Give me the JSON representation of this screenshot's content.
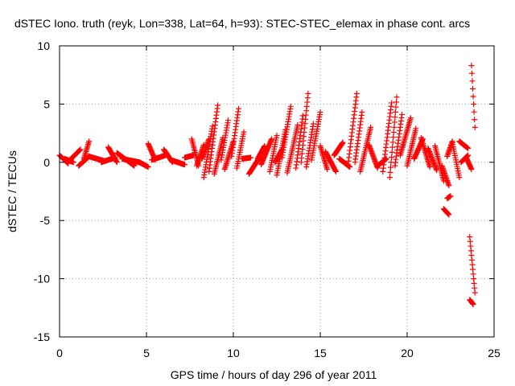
{
  "chart_data": {
    "type": "scatter",
    "title": "dSTEC Iono. truth (reyk, Lon=338, Lat=64, h=93): STEC-STEC_elemax in phase cont. arcs",
    "xlabel": "GPS time / hours of day 296 of year 2011",
    "ylabel": "dSTEC  / TECUs",
    "xlim": [
      0,
      25
    ],
    "ylim": [
      -15,
      10
    ],
    "xticks": [
      0,
      5,
      10,
      15,
      20,
      25
    ],
    "yticks": [
      -15,
      -10,
      -5,
      0,
      5,
      10
    ],
    "grid": true,
    "marker": "+",
    "color": "#ff0000",
    "arcs": [
      {
        "x0": 0.0,
        "x1": 0.5,
        "y0": 0.6,
        "y1": -0.1
      },
      {
        "x0": 0.3,
        "x1": 0.8,
        "y0": 0.3,
        "y1": 0.0
      },
      {
        "x0": 0.6,
        "x1": 1.2,
        "y0": 0.2,
        "y1": 1.1
      },
      {
        "x0": 1.1,
        "x1": 1.7,
        "y0": -0.3,
        "y1": 0.5
      },
      {
        "x0": 1.4,
        "x1": 1.7,
        "y0": 0.3,
        "y1": 1.8
      },
      {
        "x0": 1.7,
        "x1": 2.6,
        "y0": 0.5,
        "y1": 0.1
      },
      {
        "x0": 2.4,
        "x1": 3.2,
        "y0": 0.0,
        "y1": 0.4
      },
      {
        "x0": 2.8,
        "x1": 3.3,
        "y0": 1.3,
        "y1": 0.0
      },
      {
        "x0": 3.3,
        "x1": 4.3,
        "y0": 0.8,
        "y1": -0.3
      },
      {
        "x0": 3.6,
        "x1": 4.6,
        "y0": 0.3,
        "y1": 0.0
      },
      {
        "x0": 4.6,
        "x1": 5.1,
        "y0": 0.0,
        "y1": -0.4
      },
      {
        "x0": 5.1,
        "x1": 5.5,
        "y0": 1.6,
        "y1": 0.2
      },
      {
        "x0": 5.3,
        "x1": 6.1,
        "y0": 0.2,
        "y1": 0.6
      },
      {
        "x0": 6.0,
        "x1": 6.5,
        "y0": 1.1,
        "y1": 0.0
      },
      {
        "x0": 6.4,
        "x1": 7.2,
        "y0": 0.2,
        "y1": -0.2
      },
      {
        "x0": 7.2,
        "x1": 7.7,
        "y0": 0.4,
        "y1": 0.6
      },
      {
        "x0": 7.6,
        "x1": 8.0,
        "y0": 2.0,
        "y1": -0.3
      },
      {
        "x0": 7.9,
        "x1": 8.3,
        "y0": -0.3,
        "y1": 1.5
      },
      {
        "x0": 8.2,
        "x1": 8.6,
        "y0": 0.3,
        "y1": 2.0
      },
      {
        "x0": 8.3,
        "x1": 8.8,
        "y0": -1.3,
        "y1": 3.1
      },
      {
        "x0": 8.6,
        "x1": 9.1,
        "y0": -0.8,
        "y1": 4.9
      },
      {
        "x0": 8.9,
        "x1": 9.4,
        "y0": -1.0,
        "y1": 2.1
      },
      {
        "x0": 9.3,
        "x1": 9.7,
        "y0": 0.2,
        "y1": 3.6
      },
      {
        "x0": 9.5,
        "x1": 10.0,
        "y0": -0.6,
        "y1": 1.8
      },
      {
        "x0": 9.9,
        "x1": 10.3,
        "y0": 0.5,
        "y1": 4.6
      },
      {
        "x0": 10.2,
        "x1": 10.6,
        "y0": -0.5,
        "y1": 2.6
      },
      {
        "x0": 10.5,
        "x1": 11.0,
        "y0": 0.3,
        "y1": 0.4
      },
      {
        "x0": 10.9,
        "x1": 11.5,
        "y0": -1.0,
        "y1": 0.4
      },
      {
        "x0": 11.4,
        "x1": 11.8,
        "y0": 0.3,
        "y1": 1.4
      },
      {
        "x0": 11.6,
        "x1": 12.2,
        "y0": -0.2,
        "y1": 2.0
      },
      {
        "x0": 12.1,
        "x1": 12.5,
        "y0": -0.8,
        "y1": 2.3
      },
      {
        "x0": 12.4,
        "x1": 12.8,
        "y0": 0.0,
        "y1": 1.1
      },
      {
        "x0": 12.5,
        "x1": 13.0,
        "y0": -1.1,
        "y1": 2.8
      },
      {
        "x0": 12.8,
        "x1": 13.3,
        "y0": 0.4,
        "y1": 4.8
      },
      {
        "x0": 13.1,
        "x1": 13.7,
        "y0": -0.9,
        "y1": 3.2
      },
      {
        "x0": 13.6,
        "x1": 14.0,
        "y0": -0.5,
        "y1": 4.0
      },
      {
        "x0": 13.9,
        "x1": 14.3,
        "y0": 0.0,
        "y1": 5.9
      },
      {
        "x0": 14.2,
        "x1": 14.6,
        "y0": -0.4,
        "y1": 3.3
      },
      {
        "x0": 14.5,
        "x1": 15.0,
        "y0": 0.2,
        "y1": 4.3
      },
      {
        "x0": 15.0,
        "x1": 15.4,
        "y0": 1.4,
        "y1": -0.6
      },
      {
        "x0": 15.3,
        "x1": 15.9,
        "y0": 0.9,
        "y1": -0.8
      },
      {
        "x0": 15.8,
        "x1": 16.3,
        "y0": 0.6,
        "y1": 1.7
      },
      {
        "x0": 16.1,
        "x1": 16.7,
        "y0": 0.3,
        "y1": -0.4
      },
      {
        "x0": 16.6,
        "x1": 17.1,
        "y0": -0.2,
        "y1": 5.9
      },
      {
        "x0": 17.0,
        "x1": 17.4,
        "y0": 0.0,
        "y1": 4.3
      },
      {
        "x0": 17.3,
        "x1": 17.9,
        "y0": -0.8,
        "y1": 3.0
      },
      {
        "x0": 17.8,
        "x1": 18.3,
        "y0": 1.5,
        "y1": -0.5
      },
      {
        "x0": 18.3,
        "x1": 18.8,
        "y0": -0.3,
        "y1": 0.3
      },
      {
        "x0": 18.6,
        "x1": 19.1,
        "y0": -0.8,
        "y1": 5.1
      },
      {
        "x0": 19.0,
        "x1": 19.4,
        "y0": -1.3,
        "y1": 5.6
      },
      {
        "x0": 19.3,
        "x1": 19.7,
        "y0": -0.3,
        "y1": 4.1
      },
      {
        "x0": 19.6,
        "x1": 20.2,
        "y0": 0.6,
        "y1": 3.8
      },
      {
        "x0": 20.0,
        "x1": 20.5,
        "y0": -0.3,
        "y1": 2.9
      },
      {
        "x0": 20.4,
        "x1": 20.9,
        "y0": 0.3,
        "y1": 2.0
      },
      {
        "x0": 20.8,
        "x1": 21.3,
        "y0": 2.1,
        "y1": -0.4
      },
      {
        "x0": 21.2,
        "x1": 21.7,
        "y0": 1.2,
        "y1": -0.7
      },
      {
        "x0": 21.6,
        "x1": 22.1,
        "y0": 1.4,
        "y1": -1.6
      },
      {
        "x0": 22.0,
        "x1": 22.4,
        "y0": -0.3,
        "y1": -2.0
      },
      {
        "x0": 22.1,
        "x1": 22.4,
        "y0": -4.0,
        "y1": -4.5
      },
      {
        "x0": 22.3,
        "x1": 22.5,
        "y0": -3.1,
        "y1": -2.9
      },
      {
        "x0": 22.3,
        "x1": 22.6,
        "y0": 0.5,
        "y1": 1.8
      },
      {
        "x0": 22.6,
        "x1": 23.0,
        "y0": 1.7,
        "y1": -1.3
      },
      {
        "x0": 23.0,
        "x1": 23.5,
        "y0": 1.8,
        "y1": 1.2
      },
      {
        "x0": 23.1,
        "x1": 23.5,
        "y0": 0.0,
        "y1": 0.6
      },
      {
        "x0": 23.4,
        "x1": 23.7,
        "y0": 0.4,
        "y1": -0.6
      },
      {
        "x0": 23.6,
        "x1": 23.8,
        "y0": -11.8,
        "y1": -12.2
      },
      {
        "x0": 23.6,
        "x1": 23.9,
        "y0": -6.4,
        "y1": -11.2
      },
      {
        "x0": 23.7,
        "x1": 23.9,
        "y0": 8.3,
        "y1": 3.0
      }
    ]
  }
}
